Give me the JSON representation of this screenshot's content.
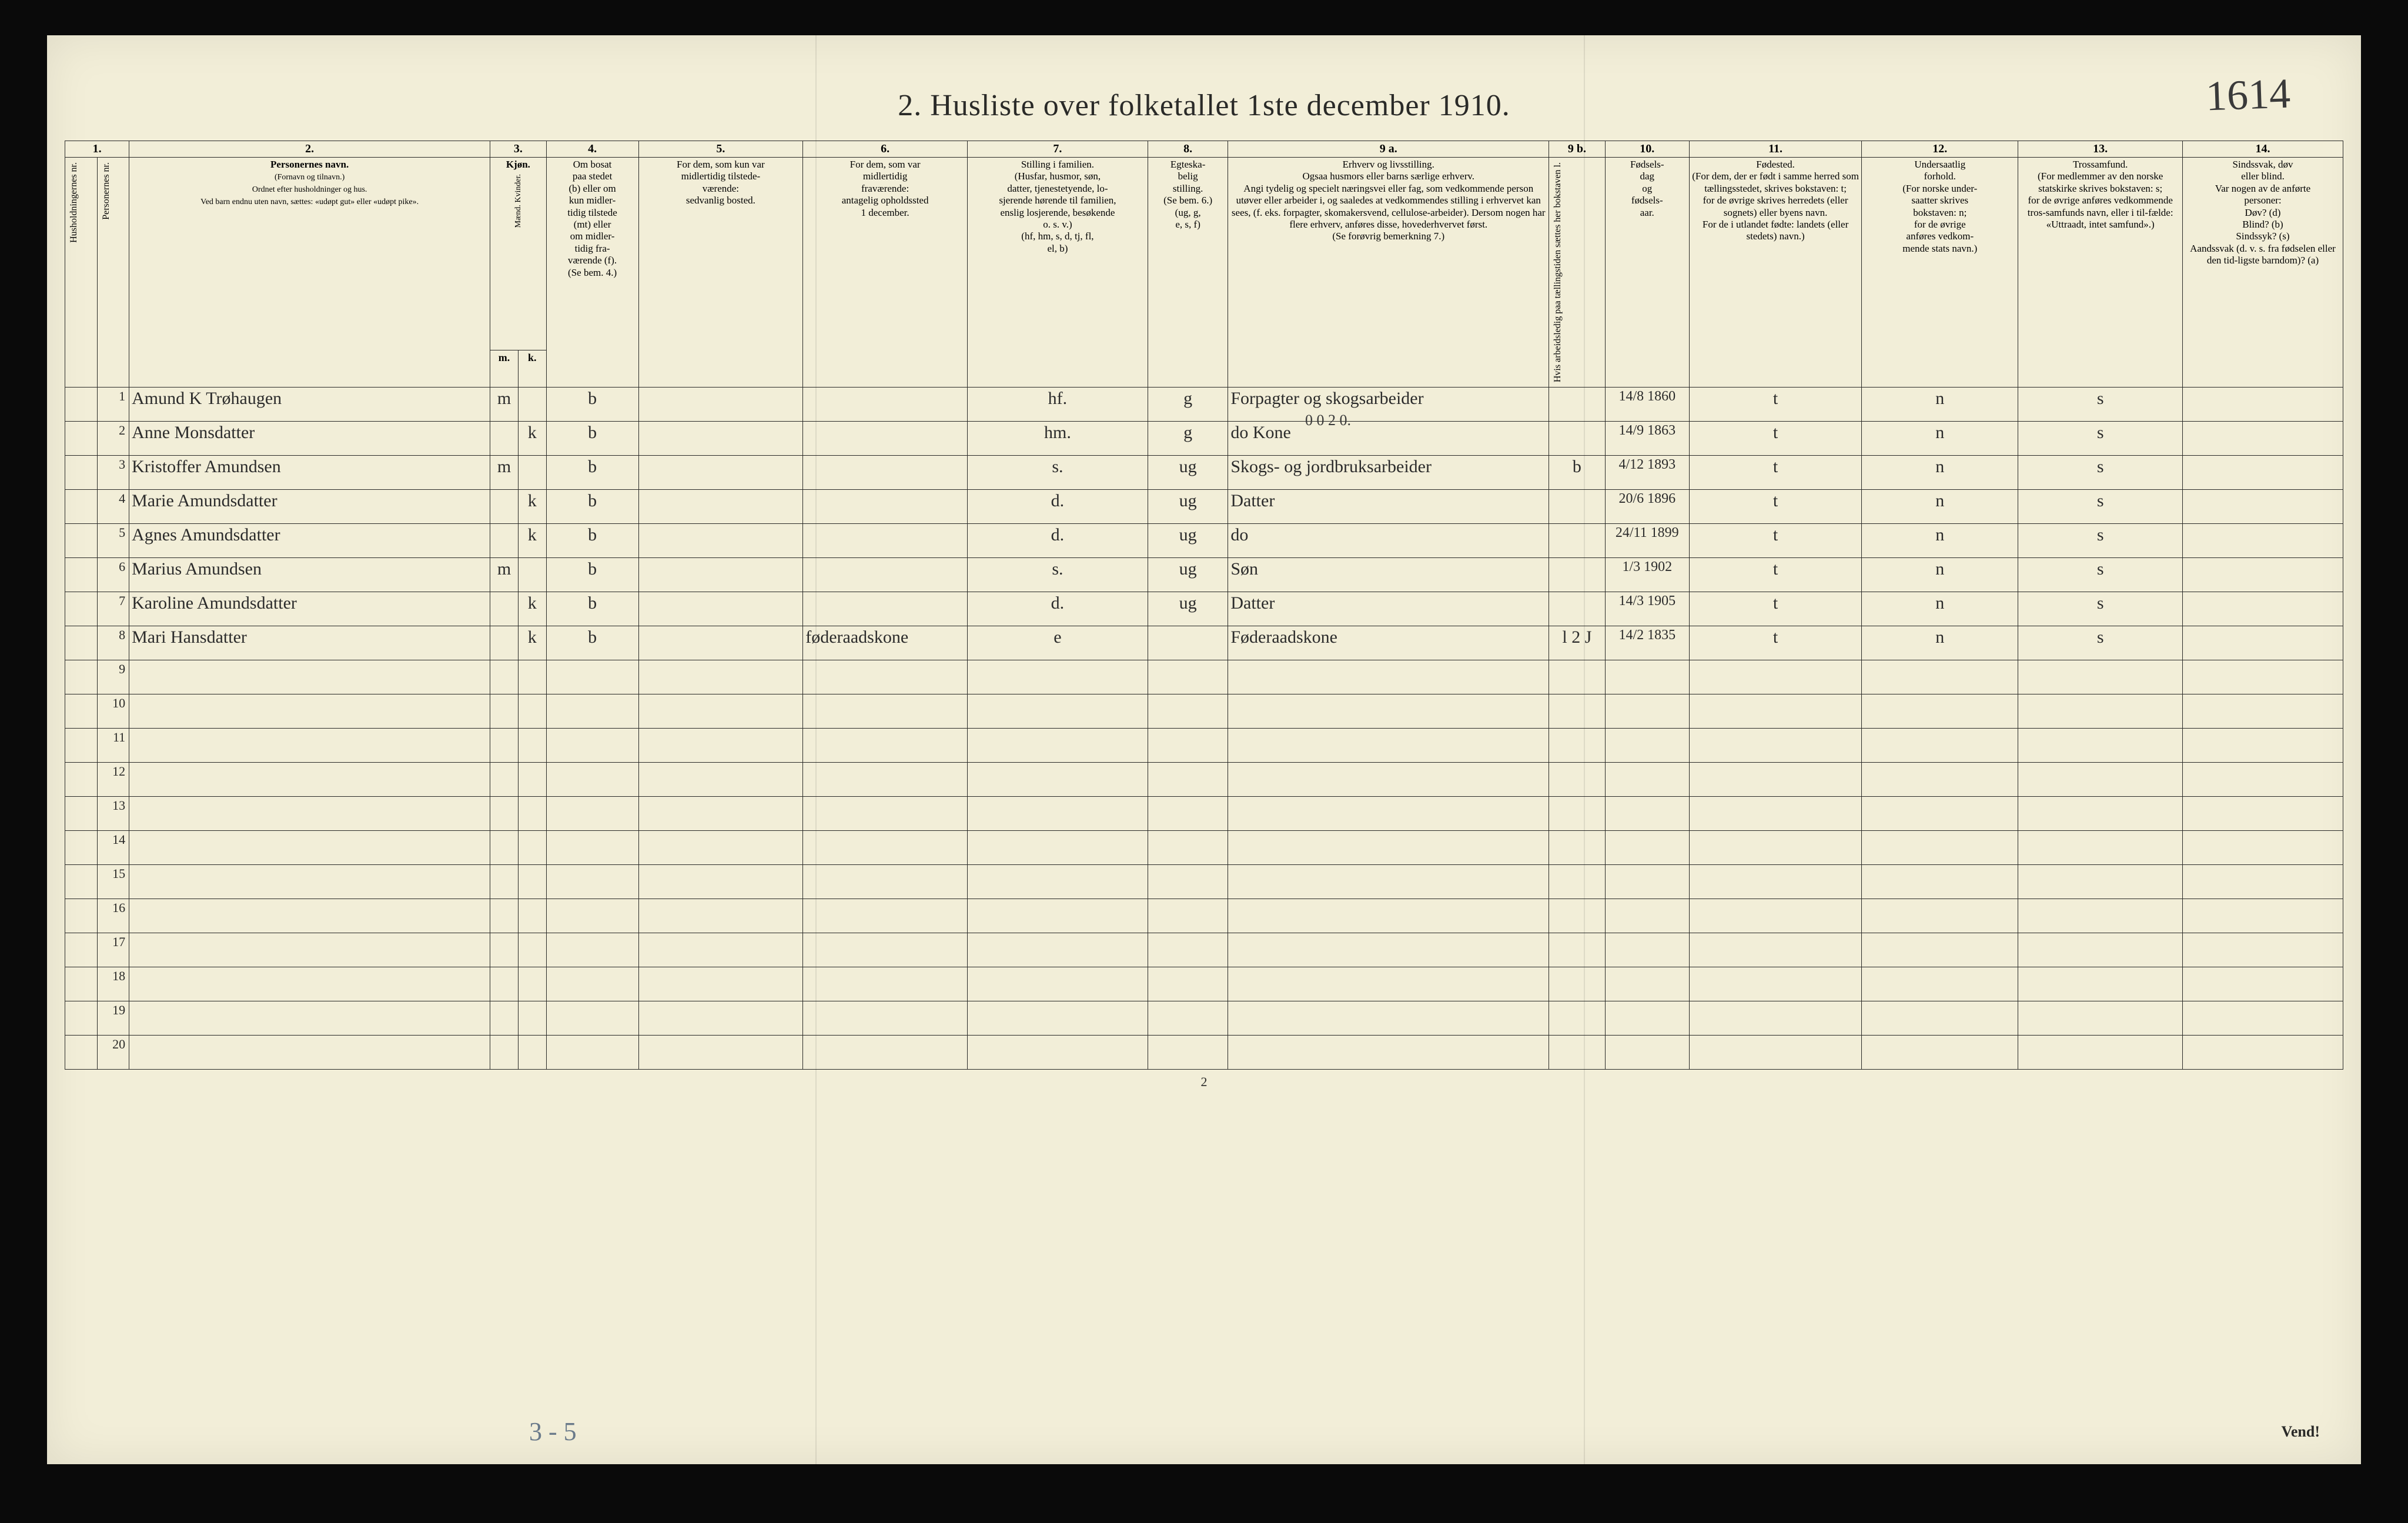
{
  "page": {
    "title": "2.  Husliste over folketallet 1ste december 1910.",
    "corner_handwritten": "1614",
    "footer_page_number": "2",
    "vend_text": "Vend!",
    "pencil_bottom": "3 - 5",
    "colors": {
      "paper": "#f2eed8",
      "ink": "#2a2a28",
      "handwriting": "#2b2b2b",
      "pencil": "#6a7a8a",
      "frame": "#0a0a0a"
    }
  },
  "column_numbers": [
    "1.",
    "2.",
    "3.",
    "4.",
    "5.",
    "6.",
    "7.",
    "8.",
    "9 a.",
    "9 b.",
    "10.",
    "11.",
    "12.",
    "13.",
    "14."
  ],
  "column_widths_pct": [
    1.6,
    1.6,
    18.0,
    1.4,
    1.4,
    4.6,
    8.2,
    8.2,
    9.0,
    4.0,
    16.0,
    2.8,
    4.2,
    8.6,
    7.8,
    8.2,
    8.0
  ],
  "headers": {
    "c1": "Husholdningernes nr.",
    "c1b": "Personernes nr.",
    "c2_title": "Personernes navn.",
    "c2_sub": "(Fornavn og tilnavn.)\nOrdnet efter husholdninger og hus.\nVed barn endnu uten navn, sættes: «udøpt gut» eller «udøpt pike».",
    "c3_title": "Kjøn.",
    "c3_m": "m.",
    "c3_k": "k.",
    "c3_sub": "Mænd.  Kvinder.",
    "c4": "Om bosat\npaa stedet\n(b) eller om\nkun midler-\ntidig tilstede\n(mt) eller\nom midler-\ntidig fra-\nværende (f).\n(Se bem. 4.)",
    "c5": "For dem, som kun var\nmidlertidig tilstede-\nværende:\nsedvanlig bosted.",
    "c6": "For dem, som var\nmidlertidig\nfraværende:\nantagelig opholdssted\n1 december.",
    "c7": "Stilling i familien.\n(Husfar, husmor, søn,\ndatter, tjenestetyende, lo-\nsjerende hørende til familien,\nenslig losjerende, besøkende\no. s. v.)\n(hf, hm, s, d, tj, fl,\nel, b)",
    "c8": "Egteska-\nbelig\nstilling.\n(Se bem. 6.)\n(ug, g,\ne, s, f)",
    "c9a": "Erhverv og livsstilling.\nOgsaa husmors eller barns særlige erhverv.\nAngi tydelig og specielt næringsvei eller fag, som vedkommende person utøver eller arbeider i, og saaledes at vedkommendes stilling i erhvervet kan sees, (f. eks. forpagter, skomakersvend, cellulose-arbeider). Dersom nogen har flere erhverv, anføres disse, hovederhvervet først.\n(Se forøvrig bemerkning 7.)",
    "c9b": "Hvis arbeidsledig\npaa tællingstiden sættes\nher bokstaven l.",
    "c10": "Fødsels-\ndag\nog\nfødsels-\naar.",
    "c11": "Fødested.\n(For dem, der er født i samme herred som tællingsstedet, skrives bokstaven: t;\nfor de øvrige skrives herredets (eller sognets) eller byens navn.\nFor de i utlandet fødte: landets (eller stedets) navn.)",
    "c12": "Undersaatlig\nforhold.\n(For norske under-\nsaatter skrives\nbokstaven: n;\nfor de øvrige\nanføres vedkom-\nmende stats navn.)",
    "c13": "Trossamfund.\n(For medlemmer av den norske statskirke skrives bokstaven: s;\nfor de øvrige anføres vedkommende tros-samfunds navn, eller i til-fælde: «Uttraadt, intet samfund».)",
    "c14": "Sindssvak, døv\neller blind.\nVar nogen av de anførte\npersoner:\nDøv?        (d)\nBlind?      (b)\nSindssyk?  (s)\nAandssvak (d. v. s. fra fødselen eller den tid-ligste barndom)?  (a)"
  },
  "stamp_above_row1": "0 0 2 0.",
  "rows": [
    {
      "n": "1",
      "name": "Amund K Trøhaugen",
      "sex_m": "m",
      "sex_k": "",
      "res": "b",
      "c5": "",
      "c6": "",
      "fam": "hf.",
      "eg": "g",
      "erhv": "Forpagter og skogsarbeider",
      "l": "",
      "dob": "14/8 1860",
      "fsted": "t",
      "und": "n",
      "tro": "s",
      "c14": ""
    },
    {
      "n": "2",
      "name": "Anne Monsdatter",
      "sex_m": "",
      "sex_k": "k",
      "res": "b",
      "c5": "",
      "c6": "",
      "fam": "hm.",
      "eg": "g",
      "erhv": "do    Kone",
      "l": "",
      "dob": "14/9 1863",
      "fsted": "t",
      "und": "n",
      "tro": "s",
      "c14": ""
    },
    {
      "n": "3",
      "name": "Kristoffer Amundsen",
      "sex_m": "m",
      "sex_k": "",
      "res": "b",
      "c5": "",
      "c6": "",
      "fam": "s.",
      "eg": "ug",
      "erhv": "Skogs- og jordbruksarbeider",
      "l": "b",
      "dob": "4/12 1893",
      "fsted": "t",
      "und": "n",
      "tro": "s",
      "c14": ""
    },
    {
      "n": "4",
      "name": "Marie Amundsdatter",
      "sex_m": "",
      "sex_k": "k",
      "res": "b",
      "c5": "",
      "c6": "",
      "fam": "d.",
      "eg": "ug",
      "erhv": "Datter",
      "l": "",
      "dob": "20/6 1896",
      "fsted": "t",
      "und": "n",
      "tro": "s",
      "c14": ""
    },
    {
      "n": "5",
      "name": "Agnes Amundsdatter",
      "sex_m": "",
      "sex_k": "k",
      "res": "b",
      "c5": "",
      "c6": "",
      "fam": "d.",
      "eg": "ug",
      "erhv": "do",
      "l": "",
      "dob": "24/11 1899",
      "fsted": "t",
      "und": "n",
      "tro": "s",
      "c14": ""
    },
    {
      "n": "6",
      "name": "Marius Amundsen",
      "sex_m": "m",
      "sex_k": "",
      "res": "b",
      "c5": "",
      "c6": "",
      "fam": "s.",
      "eg": "ug",
      "erhv": "Søn",
      "l": "",
      "dob": "1/3 1902",
      "fsted": "t",
      "und": "n",
      "tro": "s",
      "c14": ""
    },
    {
      "n": "7",
      "name": "Karoline Amundsdatter",
      "sex_m": "",
      "sex_k": "k",
      "res": "b",
      "c5": "",
      "c6": "",
      "fam": "d.",
      "eg": "ug",
      "erhv": "Datter",
      "l": "",
      "dob": "14/3 1905",
      "fsted": "t",
      "und": "n",
      "tro": "s",
      "c14": ""
    },
    {
      "n": "8",
      "name": "Mari Hansdatter",
      "sex_m": "",
      "sex_k": "k",
      "res": "b",
      "c5": "",
      "c6": "føderaadskone",
      "fam": "e",
      "eg": "",
      "erhv": "Føderaadskone",
      "l": "l 2 J",
      "dob": "14/2 1835",
      "fsted": "t",
      "und": "n",
      "tro": "s",
      "c14": ""
    }
  ],
  "empty_rows": [
    "9",
    "10",
    "11",
    "12",
    "13",
    "14",
    "15",
    "16",
    "17",
    "18",
    "19",
    "20"
  ]
}
